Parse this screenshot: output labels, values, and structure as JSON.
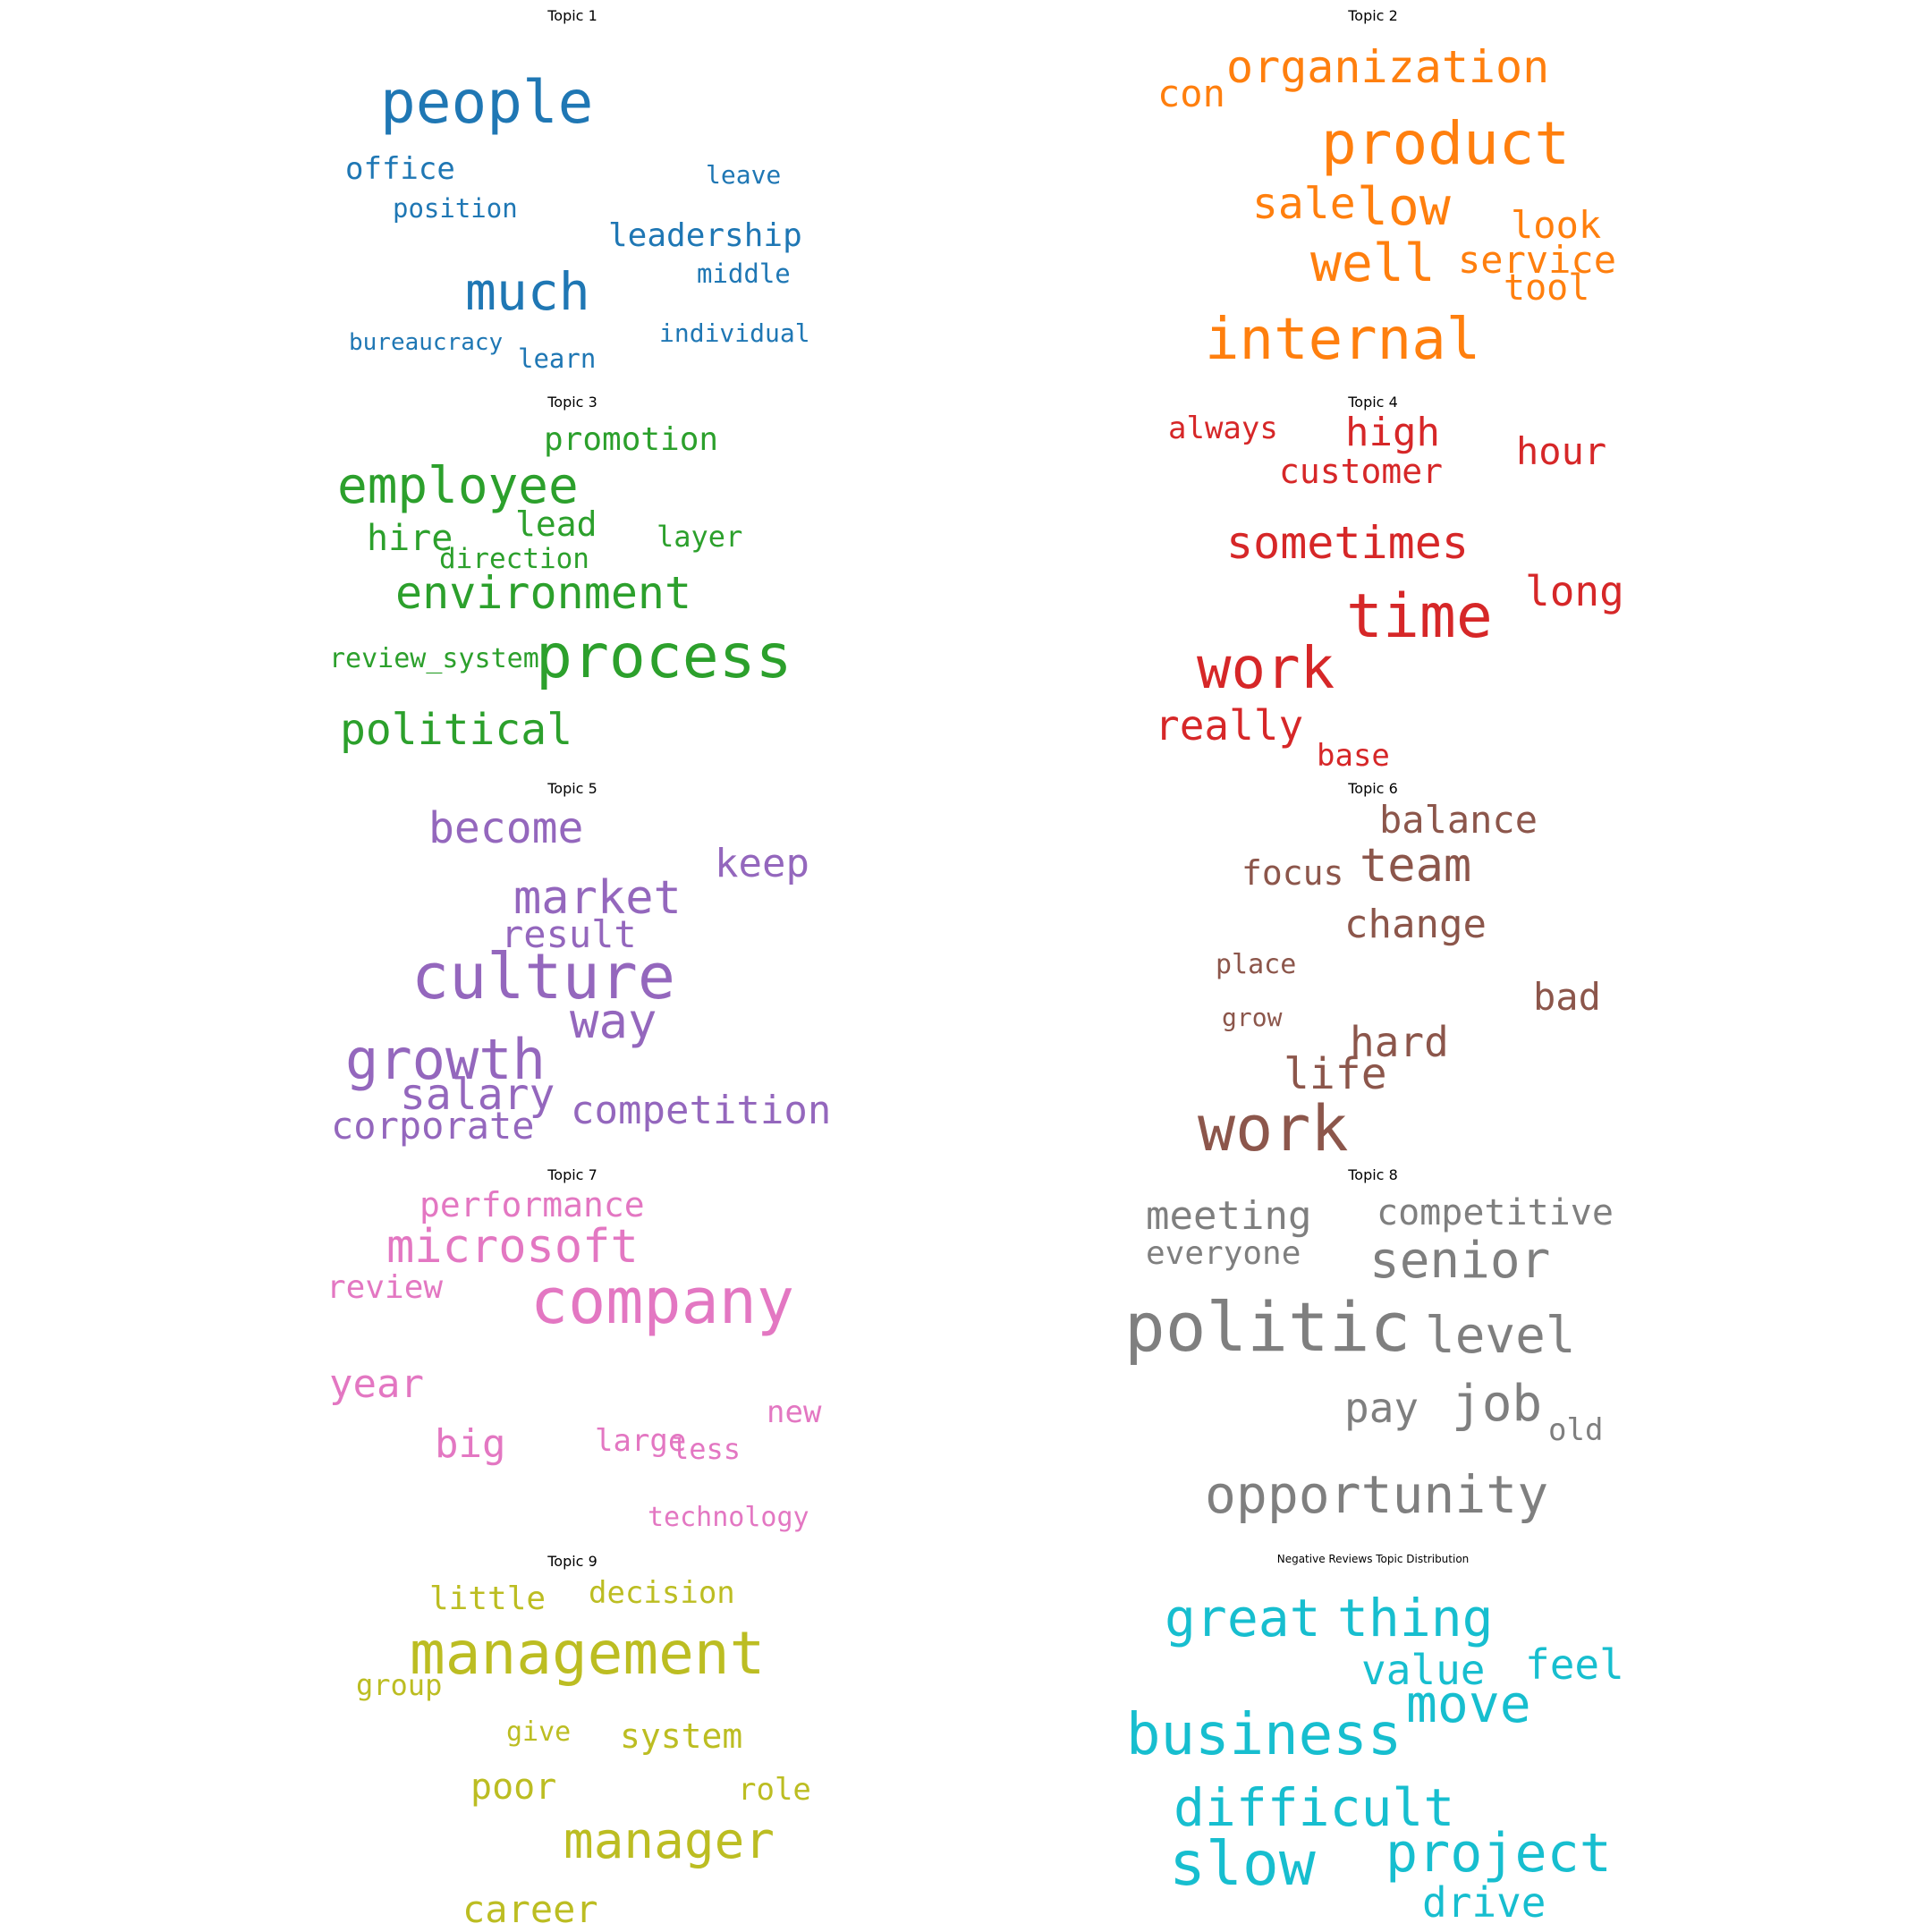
{
  "panels": [
    {
      "title": "Topic 1",
      "color": "#1f77b4",
      "words": [
        "people",
        "office",
        "leave",
        "position",
        "leadership",
        "much",
        "middle",
        "bureaucracy",
        "learn",
        "individual"
      ]
    },
    {
      "title": "Topic 2",
      "color": "#ff7f0e",
      "words": [
        "organization",
        "con",
        "product",
        "sale",
        "low",
        "look",
        "well",
        "service",
        "tool",
        "internal"
      ]
    },
    {
      "title": "Topic 3",
      "color": "#2ca02c",
      "words": [
        "promotion",
        "employee",
        "lead",
        "hire",
        "layer",
        "direction",
        "environment",
        "review_system",
        "process",
        "political"
      ]
    },
    {
      "title": "Topic 4",
      "color": "#d62728",
      "words": [
        "always",
        "high",
        "hour",
        "customer",
        "sometimes",
        "long",
        "time",
        "work",
        "really",
        "base"
      ]
    },
    {
      "title": "Topic 5",
      "color": "#9467bd",
      "words": [
        "become",
        "keep",
        "market",
        "result",
        "culture",
        "way",
        "growth",
        "salary",
        "competition",
        "corporate"
      ]
    },
    {
      "title": "Topic 6",
      "color": "#8c564b",
      "words": [
        "balance",
        "team",
        "focus",
        "change",
        "place",
        "bad",
        "grow",
        "hard",
        "life",
        "work"
      ]
    },
    {
      "title": "Topic 7",
      "color": "#e377c2",
      "words": [
        "performance",
        "microsoft",
        "review",
        "company",
        "year",
        "new",
        "big",
        "large",
        "less",
        "technology"
      ]
    },
    {
      "title": "Topic 8",
      "color": "#7f7f7f",
      "words": [
        "meeting",
        "competitive",
        "everyone",
        "senior",
        "politic",
        "level",
        "pay",
        "job",
        "old",
        "opportunity"
      ]
    },
    {
      "title": "Topic 9",
      "color": "#bcbd22",
      "words": [
        "little",
        "decision",
        "management",
        "group",
        "give",
        "system",
        "poor",
        "role",
        "manager",
        "career"
      ]
    },
    {
      "title": "Negative Reviews Topic Distribution",
      "color": "#17becf",
      "words": [
        "great",
        "thing",
        "value",
        "feel",
        "move",
        "business",
        "difficult",
        "project",
        "slow",
        "drive"
      ]
    }
  ]
}
